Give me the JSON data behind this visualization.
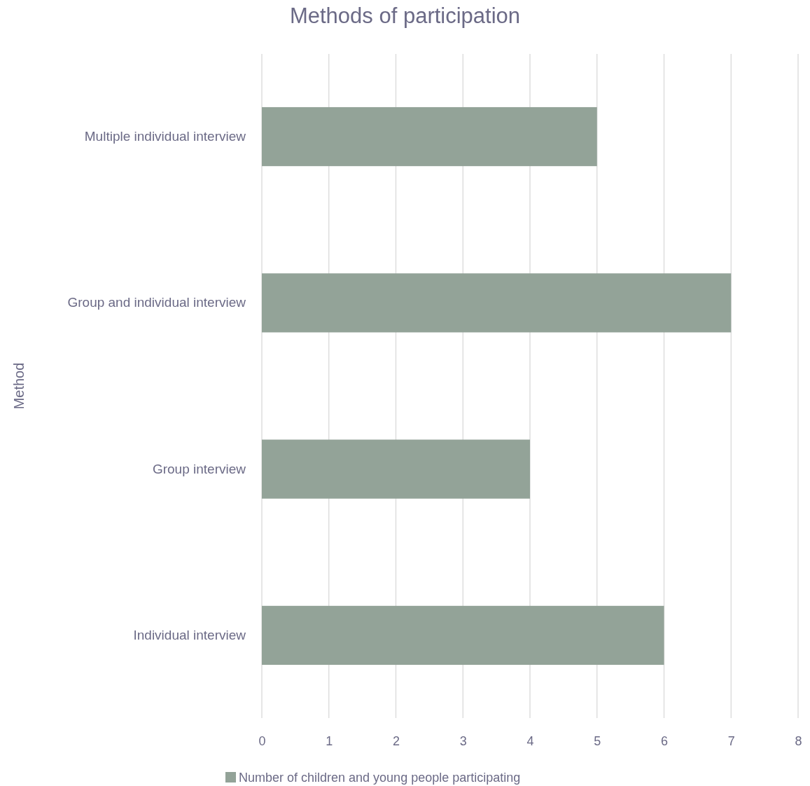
{
  "chart_data": {
    "type": "bar",
    "orientation": "horizontal",
    "title": "Methods of participation",
    "ylabel": "Method",
    "categories": [
      "Multiple individual interview",
      "Group and individual interview",
      "Group interview",
      "Individual interview"
    ],
    "series": [
      {
        "name": "Number of children and young people participating",
        "color": "#93a398",
        "values": [
          5,
          7,
          4,
          6
        ]
      }
    ],
    "xlim": [
      0,
      8
    ],
    "xticks": [
      0,
      1,
      2,
      3,
      4,
      5,
      6,
      7,
      8
    ],
    "grid": "x",
    "legend": "bottom"
  }
}
